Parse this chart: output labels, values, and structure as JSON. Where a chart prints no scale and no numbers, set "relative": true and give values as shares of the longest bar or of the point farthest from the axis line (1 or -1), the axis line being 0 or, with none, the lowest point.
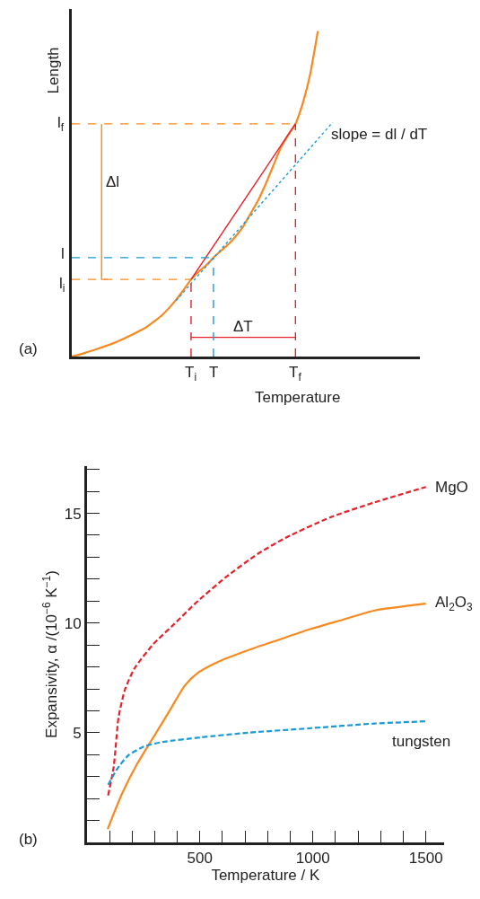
{
  "chart_data": [
    {
      "type": "line",
      "relative": true,
      "xlabel": "Temperature",
      "ylabel": "Length",
      "marker": "none",
      "categories": [
        null,
        null,
        null,
        null,
        null,
        null,
        null,
        null,
        null,
        null,
        null,
        null,
        null,
        null,
        null,
        null,
        null,
        null,
        null,
        null,
        null,
        null,
        null,
        null,
        null,
        null,
        null,
        null,
        null,
        null,
        null,
        null,
        null,
        null,
        null,
        null,
        null,
        null,
        null,
        null,
        null,
        null,
        null,
        null,
        null,
        null,
        null
      ],
      "series": [
        {
          "color": "#f7891f",
          "line_style": "solid",
          "values": [
            0,
            0.006,
            0.013,
            0.02,
            0.028,
            0.036,
            0.045,
            0.055,
            0.066,
            0.078,
            0.09,
            0.107,
            0.125,
            0.148,
            0.175,
            0.205,
            0.237,
            0.26,
            0.28,
            0.304,
            0.325,
            0.345,
            0.37,
            0.4,
            0.44,
            0.48,
            0.53,
            0.585,
            0.64,
            0.68,
            0.715,
            0.78,
            0.87,
            1,
            null,
            null,
            null,
            null,
            null,
            null,
            null,
            null,
            null,
            null,
            null,
            null,
            null
          ]
        },
        {
          "color": "#e8202a",
          "line_style": "solid",
          "values": [
            null,
            null,
            null,
            null,
            null,
            null,
            null,
            null,
            null,
            null,
            null,
            null,
            null,
            null,
            null,
            null,
            0.237,
            null,
            null,
            null,
            null,
            null,
            null,
            null,
            null,
            null,
            null,
            null,
            null,
            null,
            0.715,
            null,
            null,
            null,
            null,
            null,
            null,
            null,
            null,
            null,
            null,
            null,
            null,
            null,
            null,
            null,
            null
          ]
        },
        {
          "color": "#1a9ad6",
          "line_style": "dotted",
          "values": [
            null,
            null,
            null,
            null,
            null,
            null,
            null,
            null,
            null,
            null,
            null,
            null,
            null,
            null,
            0.172,
            null,
            null,
            null,
            null,
            null,
            null,
            null,
            null,
            null,
            null,
            null,
            null,
            null,
            null,
            null,
            null,
            null,
            null,
            null,
            null,
            0.72,
            null,
            null,
            null,
            null,
            null,
            null,
            null,
            null,
            null,
            null,
            null
          ]
        },
        {
          "color": "#f7891f",
          "line_style": "dashed",
          "values": [
            0.715,
            null,
            null,
            null,
            null,
            null,
            null,
            null,
            null,
            null,
            null,
            null,
            null,
            null,
            null,
            null,
            null,
            null,
            null,
            null,
            null,
            null,
            null,
            null,
            null,
            null,
            null,
            null,
            null,
            null,
            0.715,
            null,
            null,
            null,
            null,
            null,
            null,
            null,
            null,
            null,
            null,
            null,
            null,
            null,
            null,
            null,
            null
          ]
        },
        {
          "color": "#f7891f",
          "line_style": "dashed",
          "values": [
            0.237,
            null,
            null,
            null,
            null,
            null,
            null,
            null,
            null,
            null,
            null,
            null,
            null,
            null,
            null,
            null,
            0.237,
            null,
            null,
            null,
            null,
            null,
            null,
            null,
            null,
            null,
            null,
            null,
            null,
            null,
            null,
            null,
            null,
            null,
            null,
            null,
            null,
            null,
            null,
            null,
            null,
            null,
            null,
            null,
            null,
            null,
            null
          ]
        },
        {
          "color": "#1a9ad6",
          "line_style": "dashed",
          "values": [
            0.304,
            null,
            null,
            null,
            null,
            null,
            null,
            null,
            null,
            null,
            null,
            null,
            null,
            null,
            null,
            null,
            null,
            null,
            null,
            0.304,
            null,
            null,
            null,
            null,
            null,
            null,
            null,
            null,
            null,
            null,
            null,
            null,
            null,
            null,
            null,
            null,
            null,
            null,
            null,
            null,
            null,
            null,
            null,
            null,
            null,
            null,
            null
          ]
        },
        {
          "color": "#e8202a",
          "line_style": "solid",
          "values": [
            null,
            null,
            null,
            null,
            null,
            null,
            null,
            null,
            null,
            null,
            null,
            null,
            null,
            null,
            null,
            null,
            0.059,
            null,
            null,
            null,
            null,
            null,
            null,
            null,
            null,
            null,
            null,
            null,
            null,
            null,
            0.059,
            null,
            null,
            null,
            null,
            null,
            null,
            null,
            null,
            null,
            null,
            null,
            null,
            null,
            null,
            null,
            null
          ]
        }
      ],
      "annotations": [
        "l$_{f}$",
        "l",
        "l$_{i}$",
        "T$_{i}$",
        "T",
        "T$_{f}$",
        "Δl",
        "ΔT",
        "slope = dl / dT",
        "(a)"
      ]
    },
    {
      "type": "line",
      "xlabel": "Temperature / K",
      "ylabel": "Expansivity, α /(10$^{−6}$ K$^{−1}$)",
      "marker": "none",
      "xlim": [
        0,
        1580
      ],
      "ylim": [
        0,
        17.15
      ],
      "xticks": [
        {
          "value": 100,
          "label": null
        },
        {
          "value": 200,
          "label": null
        },
        {
          "value": 300,
          "label": null
        },
        {
          "value": 400,
          "label": null
        },
        500,
        {
          "value": 600,
          "label": null
        },
        {
          "value": 700,
          "label": null
        },
        {
          "value": 800,
          "label": null
        },
        {
          "value": 900,
          "label": null
        },
        1000,
        {
          "value": 1100,
          "label": null
        },
        {
          "value": 1200,
          "label": null
        },
        {
          "value": 1300,
          "label": null
        },
        {
          "value": 1400,
          "label": null
        },
        1500
      ],
      "yticks": [
        {
          "value": 1,
          "label": null
        },
        {
          "value": 2,
          "label": null
        },
        {
          "value": 3,
          "label": null
        },
        {
          "value": 4,
          "label": null
        },
        5,
        {
          "value": 6,
          "label": null
        },
        {
          "value": 7,
          "label": null
        },
        {
          "value": 8,
          "label": null
        },
        {
          "value": 9,
          "label": null
        },
        10,
        {
          "value": 11,
          "label": null
        },
        {
          "value": 12,
          "label": null
        },
        {
          "value": 13,
          "label": null
        },
        {
          "value": 14,
          "label": null
        },
        15,
        {
          "value": 16,
          "label": null
        },
        {
          "value": 17,
          "label": null
        }
      ],
      "series": [
        {
          "name": "MgO",
          "color": "#e8202a",
          "line_style": "dashed",
          "x": [
            94,
            119,
            140,
            168,
            210,
            294,
            378,
            490,
            616,
            756,
            882,
            1078,
            1273,
            1500
          ],
          "values": [
            2.14,
            3.47,
            5.7,
            6.95,
            7.92,
            9.04,
            9.87,
            10.99,
            12.1,
            13.15,
            13.9,
            14.82,
            15.5,
            16.2
          ]
        },
        {
          "name": "Al$_{2}$O$_{3}$",
          "color": "#f7891f",
          "line_style": "solid",
          "x": [
            92,
            155,
            224,
            294,
            364,
            434,
            490,
            574,
            713,
            853,
            994,
            1133,
            1273,
            1500
          ],
          "values": [
            0.61,
            2.21,
            3.61,
            4.79,
            5.97,
            7.16,
            7.72,
            8.2,
            8.76,
            9.25,
            9.74,
            10.15,
            10.57,
            10.88
          ]
        },
        {
          "name": "tungsten",
          "color": "#1a9ad6",
          "line_style": "dashed",
          "x": [
            94,
            133,
            182,
            252,
            336,
            504,
            713,
            994,
            1273,
            1500
          ],
          "values": [
            2.63,
            3.33,
            3.96,
            4.37,
            4.58,
            4.79,
            5.0,
            5.21,
            5.42,
            5.52
          ]
        }
      ],
      "annotations": [
        "(b)"
      ]
    }
  ]
}
